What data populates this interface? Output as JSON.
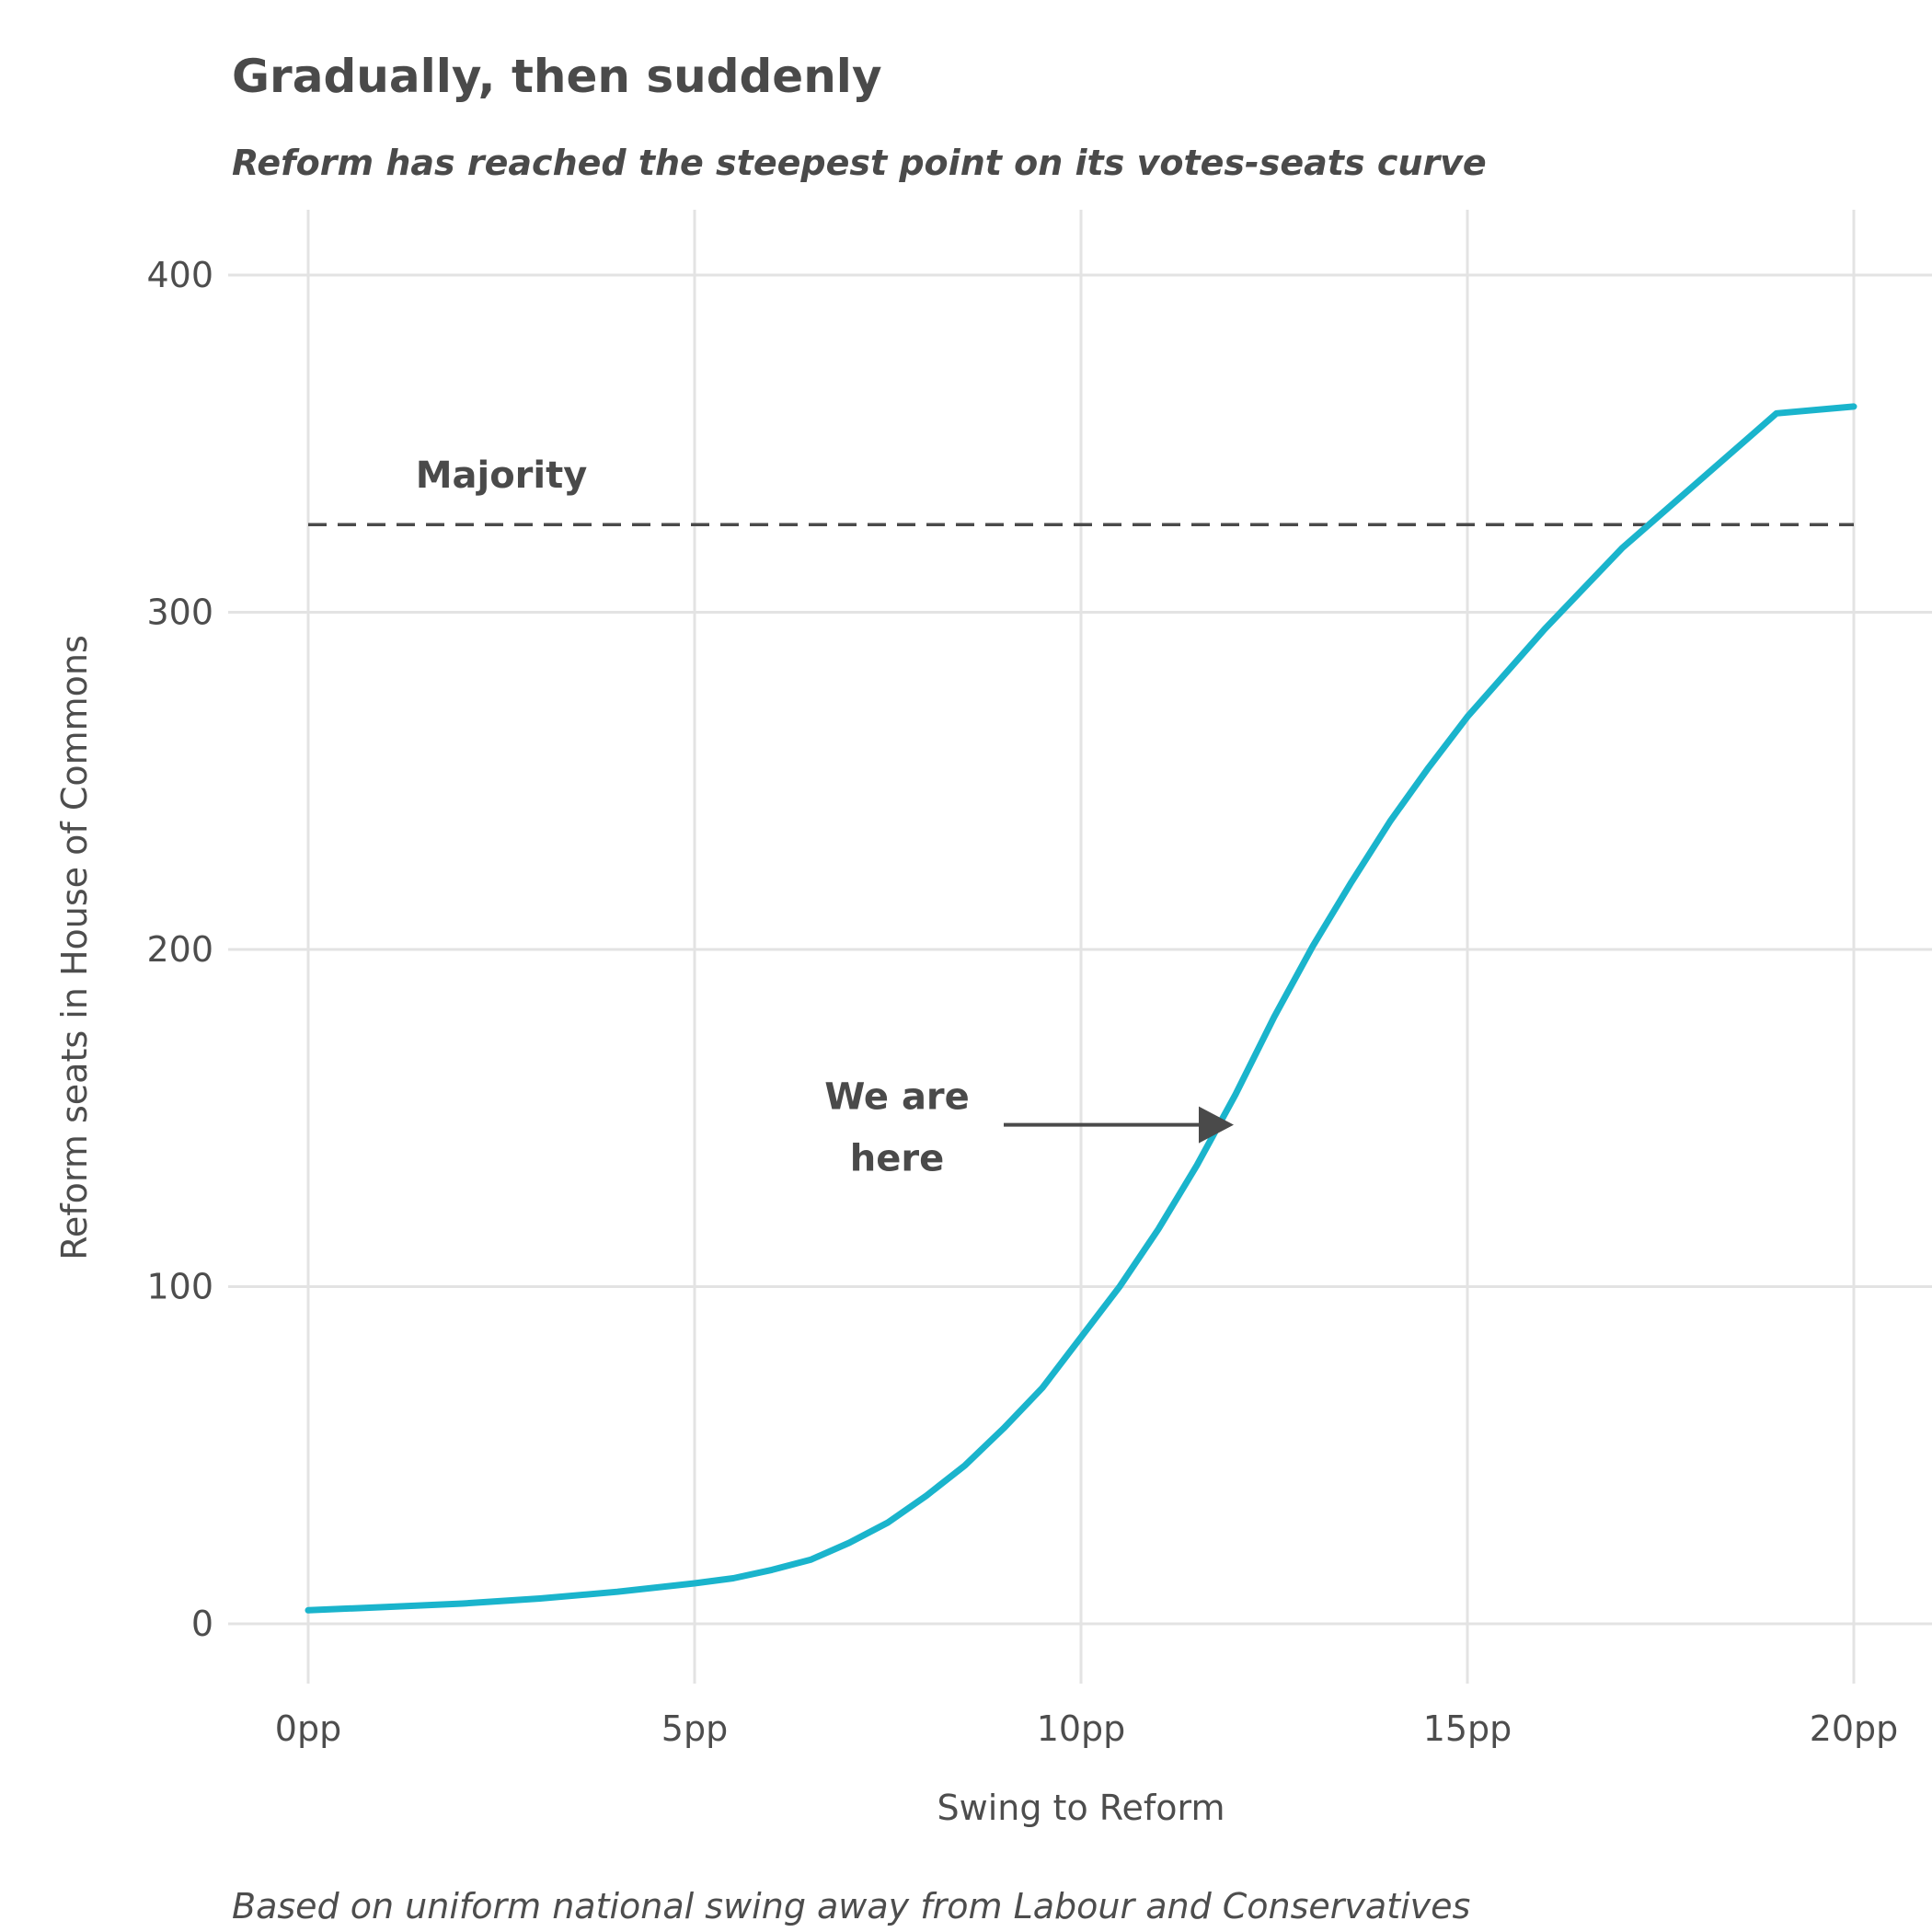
{
  "chart_data": {
    "type": "line",
    "title": "Gradually, then suddenly",
    "subtitle": "Reform has reached the steepest point on its votes-seats curve",
    "xlabel": "Swing to Reform",
    "ylabel": "Reform seats in House of Commons",
    "caption": "Based on uniform national swing away from Labour and Conservatives",
    "xlim": [
      0,
      20
    ],
    "ylim": [
      0,
      400
    ],
    "x_ticks": [
      0,
      5,
      10,
      15,
      20
    ],
    "x_tick_labels": [
      "0pp",
      "5pp",
      "10pp",
      "15pp",
      "20pp"
    ],
    "y_ticks": [
      0,
      100,
      200,
      300,
      400
    ],
    "y_tick_labels": [
      "0",
      "100",
      "200",
      "300",
      "400"
    ],
    "grid": true,
    "line_color": "#1ab4cc",
    "series": [
      {
        "x": [
          0,
          1,
          2,
          3,
          4,
          5,
          5.5,
          6,
          6.5,
          7,
          7.5,
          8,
          8.5,
          9,
          9.5,
          10,
          10.5,
          11,
          11.5,
          12,
          12.5,
          13,
          13.5,
          14,
          14.5,
          15,
          16,
          17,
          18,
          19,
          20
        ],
        "values": [
          4,
          5,
          6,
          7.5,
          9.5,
          12,
          13.5,
          16,
          19,
          24,
          30,
          38,
          47,
          58,
          70,
          85,
          100,
          117,
          136,
          157,
          180,
          201,
          220,
          238,
          254,
          269,
          295,
          319,
          339,
          359,
          361
        ]
      }
    ],
    "reference_lines": [
      {
        "label": "Majority",
        "y": 326,
        "style": "dashed"
      }
    ],
    "annotations": [
      {
        "text_line1": "We are",
        "text_line2": "here",
        "target_x": 12,
        "target_y": 148
      }
    ]
  }
}
